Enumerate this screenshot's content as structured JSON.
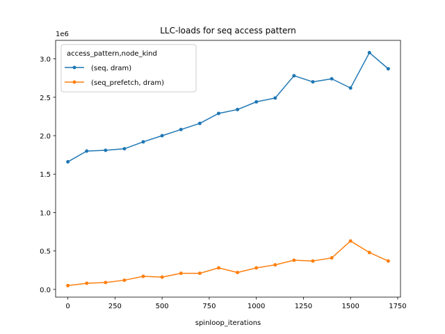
{
  "chart_data": {
    "type": "line",
    "title": "LLC-loads for seq access pattern",
    "xlabel": "spinloop_iterations",
    "ylabel": "",
    "y_offset_label": "1e6",
    "xlim": [
      -65,
      1765
    ],
    "ylim": [
      -0.1,
      3.24
    ],
    "x_ticks": [
      0,
      250,
      500,
      750,
      1000,
      1250,
      1500,
      1750
    ],
    "x_tick_labels": [
      "0",
      "250",
      "500",
      "750",
      "1000",
      "1250",
      "1500",
      "1750"
    ],
    "y_ticks": [
      0.0,
      0.5,
      1.0,
      1.5,
      2.0,
      2.5,
      3.0
    ],
    "y_tick_labels": [
      "0.0",
      "0.5",
      "1.0",
      "1.5",
      "2.0",
      "2.5",
      "3.0"
    ],
    "legend_title": "access_pattern,node_kind",
    "legend_position": "upper-left",
    "grid": false,
    "x": [
      0,
      100,
      200,
      300,
      400,
      500,
      600,
      700,
      800,
      900,
      1000,
      1100,
      1200,
      1300,
      1400,
      1500,
      1600,
      1700
    ],
    "series": [
      {
        "name": "(seq, dram)",
        "color": "#1f77b4",
        "values": [
          1.66,
          1.8,
          1.81,
          1.83,
          1.92,
          2.0,
          2.08,
          2.16,
          2.29,
          2.34,
          2.44,
          2.49,
          2.78,
          2.7,
          2.74,
          2.62,
          3.08,
          2.87
        ]
      },
      {
        "name": "(seq_prefetch, dram)",
        "color": "#ff7f0e",
        "values": [
          0.05,
          0.08,
          0.09,
          0.12,
          0.17,
          0.16,
          0.21,
          0.21,
          0.28,
          0.22,
          0.28,
          0.32,
          0.38,
          0.37,
          0.41,
          0.63,
          0.48,
          0.37
        ]
      }
    ]
  }
}
